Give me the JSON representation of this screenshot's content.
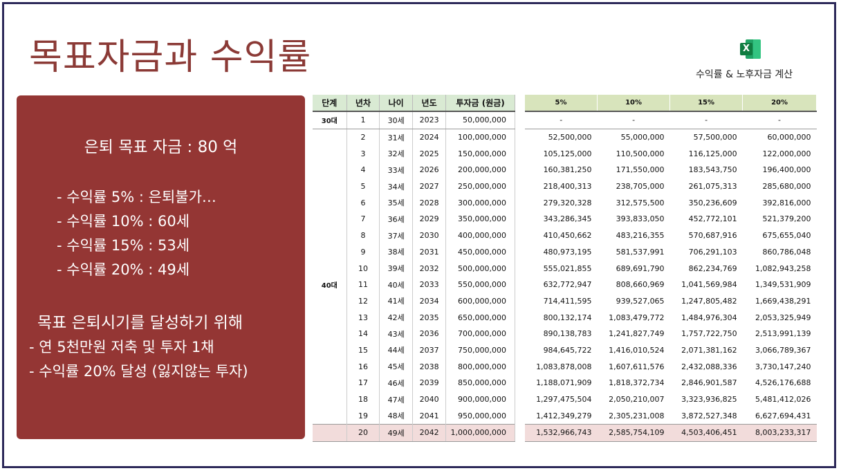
{
  "title": "목표자금과 수익률",
  "excel_link": {
    "icon": "excel-icon",
    "label": "수익률 & 노후자금 계산"
  },
  "panel": {
    "goal": "은퇴 목표 자금 : 80 억",
    "rates": [
      "- 수익률 5% : 은퇴불가…",
      "- 수익률 10% : 60세",
      "- 수익률 15% : 53세",
      "- 수익률 20% : 49세"
    ],
    "plan_heading": "목표 은퇴시기를 달성하기 위해",
    "plan_items": [
      "- 연 5천만원 저축 및 투자 1채",
      "- 수익률 20% 달성 (잃지않는 투자)"
    ]
  },
  "table_left": {
    "headers": [
      "단계",
      "년차",
      "나이",
      "년도",
      "투자금 (원금)"
    ],
    "rows": [
      [
        "30대",
        "1",
        "30세",
        "2023",
        "50,000,000"
      ],
      [
        "",
        "2",
        "31세",
        "2024",
        "100,000,000"
      ],
      [
        "",
        "3",
        "32세",
        "2025",
        "150,000,000"
      ],
      [
        "",
        "4",
        "33세",
        "2026",
        "200,000,000"
      ],
      [
        "",
        "5",
        "34세",
        "2027",
        "250,000,000"
      ],
      [
        "",
        "6",
        "35세",
        "2028",
        "300,000,000"
      ],
      [
        "",
        "7",
        "36세",
        "2029",
        "350,000,000"
      ],
      [
        "",
        "8",
        "37세",
        "2030",
        "400,000,000"
      ],
      [
        "",
        "9",
        "38세",
        "2031",
        "450,000,000"
      ],
      [
        "",
        "10",
        "39세",
        "2032",
        "500,000,000"
      ],
      [
        "40대",
        "11",
        "40세",
        "2033",
        "550,000,000"
      ],
      [
        "",
        "12",
        "41세",
        "2034",
        "600,000,000"
      ],
      [
        "",
        "13",
        "42세",
        "2035",
        "650,000,000"
      ],
      [
        "",
        "14",
        "43세",
        "2036",
        "700,000,000"
      ],
      [
        "",
        "15",
        "44세",
        "2037",
        "750,000,000"
      ],
      [
        "",
        "16",
        "45세",
        "2038",
        "800,000,000"
      ],
      [
        "",
        "17",
        "46세",
        "2039",
        "850,000,000"
      ],
      [
        "",
        "18",
        "47세",
        "2040",
        "900,000,000"
      ],
      [
        "",
        "19",
        "48세",
        "2041",
        "950,000,000"
      ],
      [
        "",
        "20",
        "49세",
        "2042",
        "1,000,000,000"
      ]
    ]
  },
  "table_right": {
    "headers": [
      "5%",
      "10%",
      "15%",
      "20%"
    ],
    "rows": [
      [
        "-",
        "-",
        "-",
        "-"
      ],
      [
        "52,500,000",
        "55,000,000",
        "57,500,000",
        "60,000,000"
      ],
      [
        "105,125,000",
        "110,500,000",
        "116,125,000",
        "122,000,000"
      ],
      [
        "160,381,250",
        "171,550,000",
        "183,543,750",
        "196,400,000"
      ],
      [
        "218,400,313",
        "238,705,000",
        "261,075,313",
        "285,680,000"
      ],
      [
        "279,320,328",
        "312,575,500",
        "350,236,609",
        "392,816,000"
      ],
      [
        "343,286,345",
        "393,833,050",
        "452,772,101",
        "521,379,200"
      ],
      [
        "410,450,662",
        "483,216,355",
        "570,687,916",
        "675,655,040"
      ],
      [
        "480,973,195",
        "581,537,991",
        "706,291,103",
        "860,786,048"
      ],
      [
        "555,021,855",
        "689,691,790",
        "862,234,769",
        "1,082,943,258"
      ],
      [
        "632,772,947",
        "808,660,969",
        "1,041,569,984",
        "1,349,531,909"
      ],
      [
        "714,411,595",
        "939,527,065",
        "1,247,805,482",
        "1,669,438,291"
      ],
      [
        "800,132,174",
        "1,083,479,772",
        "1,484,976,304",
        "2,053,325,949"
      ],
      [
        "890,138,783",
        "1,241,827,749",
        "1,757,722,750",
        "2,513,991,139"
      ],
      [
        "984,645,722",
        "1,416,010,524",
        "2,071,381,162",
        "3,066,789,367"
      ],
      [
        "1,083,878,008",
        "1,607,611,576",
        "2,432,088,336",
        "3,730,147,240"
      ],
      [
        "1,188,071,909",
        "1,818,372,734",
        "2,846,901,587",
        "4,526,176,688"
      ],
      [
        "1,297,475,504",
        "2,050,210,007",
        "3,323,936,825",
        "5,481,412,026"
      ],
      [
        "1,412,349,279",
        "2,305,231,008",
        "3,872,527,348",
        "6,627,694,431"
      ],
      [
        "1,532,966,743",
        "2,585,754,109",
        "4,503,406,451",
        "8,003,233,317"
      ]
    ]
  }
}
